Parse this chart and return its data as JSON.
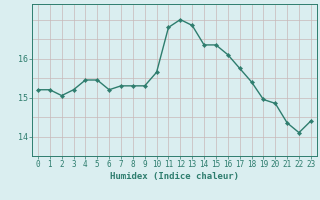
{
  "x": [
    0,
    1,
    2,
    3,
    4,
    5,
    6,
    7,
    8,
    9,
    10,
    11,
    12,
    13,
    14,
    15,
    16,
    17,
    18,
    19,
    20,
    21,
    22,
    23
  ],
  "y": [
    15.2,
    15.2,
    15.05,
    15.2,
    15.45,
    15.45,
    15.2,
    15.3,
    15.3,
    15.3,
    15.65,
    16.8,
    17.0,
    16.85,
    16.35,
    16.35,
    16.1,
    15.75,
    15.4,
    14.95,
    14.85,
    14.35,
    14.1,
    14.4
  ],
  "line_color": "#2e7d6e",
  "marker": "D",
  "markersize": 2.2,
  "linewidth": 1.0,
  "bg_color": "#daeef0",
  "grid_color_v": "#c8b8b8",
  "grid_color_h": "#c8b8b8",
  "axis_color": "#2e7d6e",
  "xlabel": "Humidex (Indice chaleur)",
  "xlabel_fontsize": 6.5,
  "tick_fontsize": 5.5,
  "yticks": [
    14,
    15,
    16
  ],
  "ylim": [
    13.5,
    17.4
  ],
  "xlim": [
    -0.5,
    23.5
  ]
}
